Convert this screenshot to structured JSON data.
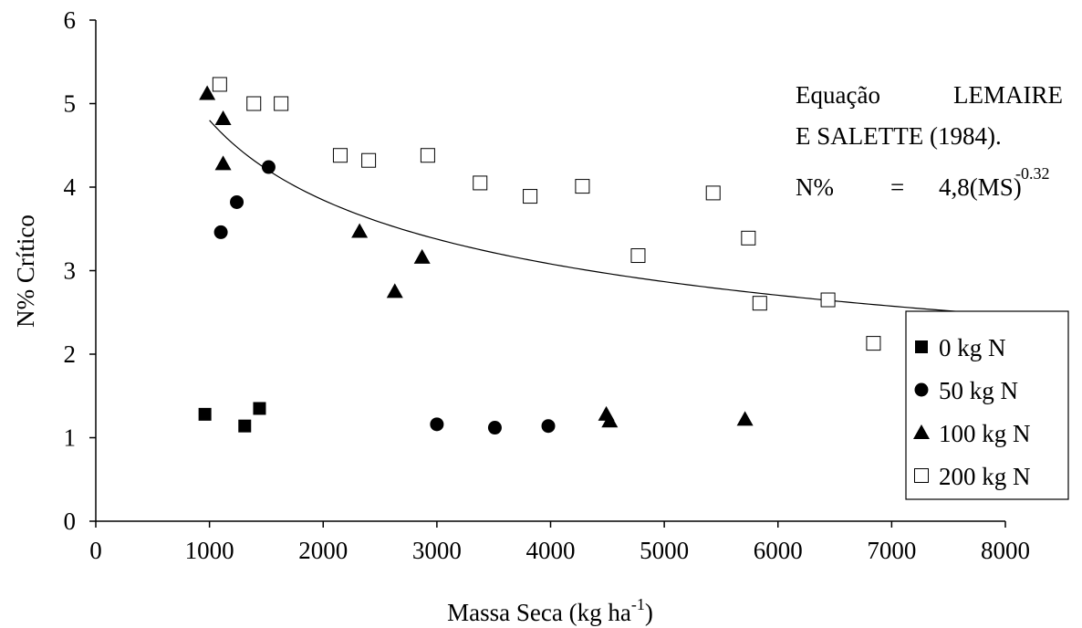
{
  "chart_data": {
    "type": "scatter",
    "xlabel": "Massa Seca (kg ha",
    "xlabel_sup": "-1",
    "xlabel_end": ")",
    "ylabel": "N% Crítico",
    "xlim": [
      0,
      8000
    ],
    "ylim": [
      0,
      6
    ],
    "xticks": [
      0,
      1000,
      2000,
      3000,
      4000,
      5000,
      6000,
      7000,
      8000
    ],
    "yticks": [
      0,
      1,
      2,
      3,
      4,
      5,
      6
    ],
    "grid": false,
    "legend_position": "bottom-right",
    "series": [
      {
        "name": "0 kg N",
        "marker": "square-filled",
        "points": [
          [
            960,
            1.28
          ],
          [
            1310,
            1.14
          ],
          [
            1440,
            1.35
          ]
        ]
      },
      {
        "name": "50 kg N",
        "marker": "circle-filled",
        "points": [
          [
            1100,
            3.46
          ],
          [
            1240,
            3.82
          ],
          [
            1520,
            4.24
          ],
          [
            3000,
            1.16
          ],
          [
            3510,
            1.12
          ],
          [
            3980,
            1.14
          ]
        ]
      },
      {
        "name": "100 kg N",
        "marker": "triangle-filled",
        "points": [
          [
            980,
            5.12
          ],
          [
            1120,
            4.82
          ],
          [
            1120,
            4.28
          ],
          [
            2320,
            3.47
          ],
          [
            2630,
            2.75
          ],
          [
            2870,
            3.16
          ],
          [
            4490,
            1.28
          ],
          [
            4520,
            1.2
          ],
          [
            5710,
            1.22
          ]
        ]
      },
      {
        "name": "200 kg N",
        "marker": "square-open",
        "points": [
          [
            1090,
            5.23
          ],
          [
            1390,
            5.0
          ],
          [
            1630,
            5.0
          ],
          [
            2150,
            4.38
          ],
          [
            2400,
            4.32
          ],
          [
            2920,
            4.38
          ],
          [
            3380,
            4.05
          ],
          [
            3820,
            3.89
          ],
          [
            4280,
            4.01
          ],
          [
            4770,
            3.18
          ],
          [
            5430,
            3.93
          ],
          [
            5740,
            3.39
          ],
          [
            5840,
            2.61
          ],
          [
            6440,
            2.65
          ],
          [
            6840,
            2.13
          ]
        ]
      }
    ],
    "curve": {
      "coefficient": 4.8,
      "exponent": -0.32,
      "x_scale": 1000,
      "x_range": [
        1000,
        8000
      ]
    },
    "annotation": {
      "line1_left": "Equação",
      "line1_right": "LEMAIRE",
      "line2": "E SALETTE (1984).",
      "line3_a": "N%",
      "line3_b": "=",
      "line3_c": "4,8(MS)",
      "line3_sup": "-0.32"
    }
  }
}
